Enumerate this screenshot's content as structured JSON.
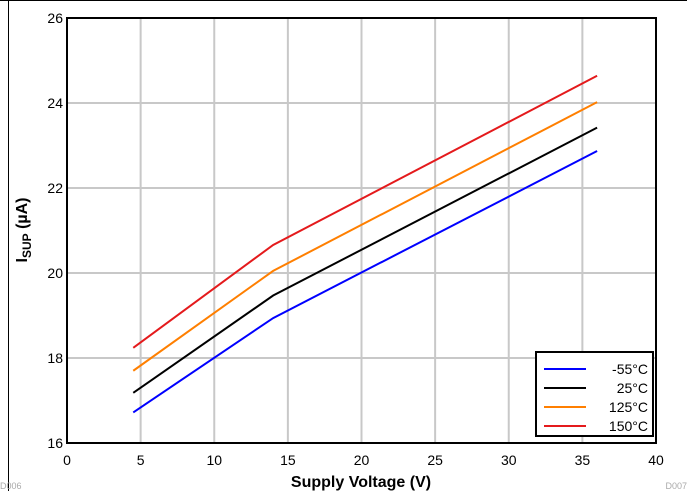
{
  "chart_data": {
    "type": "line",
    "xlabel": "Supply Voltage (V)",
    "ylabel_main": "I",
    "ylabel_sub": "SUP",
    "ylabel_unit": " (µA)",
    "xlim": [
      0,
      40
    ],
    "ylim": [
      16,
      26
    ],
    "xticks": [
      0,
      5,
      10,
      15,
      20,
      25,
      30,
      35,
      40
    ],
    "yticks": [
      16,
      18,
      20,
      22,
      24,
      26
    ],
    "grid": true,
    "legend_position": "bottom-right",
    "series": [
      {
        "name": "-55°C",
        "color": "#0000ff",
        "x": [
          4.5,
          14,
          36
        ],
        "y": [
          16.72,
          18.94,
          22.87
        ]
      },
      {
        "name": "25°C",
        "color": "#000000",
        "x": [
          4.5,
          14,
          36
        ],
        "y": [
          17.18,
          19.47,
          23.42
        ]
      },
      {
        "name": "125°C",
        "color": "#ff7f00",
        "x": [
          4.5,
          14,
          36
        ],
        "y": [
          17.7,
          20.05,
          24.02
        ]
      },
      {
        "name": "150°C",
        "color": "#e41a1c",
        "x": [
          4.5,
          14,
          36
        ],
        "y": [
          18.24,
          20.66,
          24.64
        ]
      }
    ]
  },
  "corner_codes": {
    "left": "D006",
    "right": "D007"
  }
}
